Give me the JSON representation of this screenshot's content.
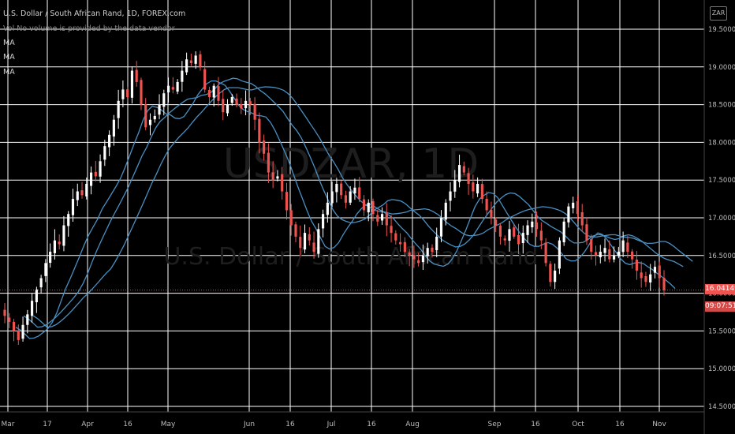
{
  "header": {
    "symbol_line": "U.S. Dollar / South African Rand, 1D, FOREX.com",
    "volume_line": "Vol  No volume is provided by the data vendor",
    "ma_labels": [
      "MA",
      "MA",
      "MA"
    ]
  },
  "watermark": {
    "symbol": "USDZAR, 1D",
    "name": "U.S. Dollar / South African Rand"
  },
  "currency_badge": "ZAR",
  "current_price": "16.04149",
  "countdown": "09:07:51",
  "colors": {
    "up": "#ffffff",
    "down": "#ef5350",
    "ma": "#4a90c2",
    "grid": "#ffffff",
    "axis_text": "#bdbdbd",
    "price_line": "#ef5350"
  },
  "chart_data": {
    "type": "candlestick",
    "title": "U.S. Dollar / South African Rand, 1D, FOREX.com",
    "y_ticks": [
      "19.50000",
      "19.00000",
      "18.50000",
      "18.00000",
      "17.50000",
      "17.00000",
      "16.50000",
      "16.00000",
      "15.50000",
      "15.00000",
      "14.50000"
    ],
    "y_range": [
      14.5,
      19.6
    ],
    "x_ticks": [
      "Mar",
      "17",
      "Apr",
      "16",
      "May",
      "Jun",
      "16",
      "Jul",
      "16",
      "Aug",
      "Sep",
      "16",
      "Oct",
      "16",
      "Nov"
    ],
    "grid": true,
    "close_series": [
      15.7,
      15.62,
      15.5,
      15.38,
      15.58,
      15.72,
      15.9,
      16.05,
      16.2,
      16.4,
      16.55,
      16.7,
      16.65,
      16.9,
      17.05,
      17.25,
      17.35,
      17.3,
      17.45,
      17.6,
      17.55,
      17.75,
      17.95,
      18.1,
      18.3,
      18.55,
      18.7,
      18.6,
      18.95,
      18.8,
      18.5,
      18.2,
      18.3,
      18.35,
      18.5,
      18.65,
      18.75,
      18.7,
      18.8,
      18.95,
      19.1,
      19.05,
      19.15,
      19.0,
      18.7,
      18.6,
      18.75,
      18.55,
      18.4,
      18.5,
      18.6,
      18.5,
      18.45,
      18.55,
      18.5,
      18.3,
      18.0,
      17.85,
      17.6,
      17.5,
      17.55,
      17.35,
      17.1,
      16.9,
      16.75,
      16.6,
      16.8,
      16.7,
      16.55,
      16.85,
      17.05,
      17.2,
      17.35,
      17.45,
      17.3,
      17.2,
      17.35,
      17.4,
      17.25,
      17.1,
      17.2,
      17.05,
      16.95,
      17.05,
      16.9,
      16.8,
      16.7,
      16.65,
      16.55,
      16.5,
      16.45,
      16.4,
      16.5,
      16.6,
      16.55,
      16.75,
      17.0,
      17.2,
      17.35,
      17.5,
      17.7,
      17.6,
      17.45,
      17.35,
      17.45,
      17.25,
      17.1,
      17.0,
      16.9,
      16.75,
      16.7,
      16.85,
      16.75,
      16.65,
      16.8,
      16.9,
      16.95,
      16.85,
      16.7,
      16.4,
      16.15,
      16.3,
      16.7,
      16.95,
      17.15,
      17.2,
      17.05,
      16.9,
      16.7,
      16.55,
      16.5,
      16.55,
      16.6,
      16.45,
      16.5,
      16.55,
      16.7,
      16.55,
      16.45,
      16.3,
      16.2,
      16.15,
      16.25,
      16.35,
      16.2,
      16.04
    ]
  }
}
